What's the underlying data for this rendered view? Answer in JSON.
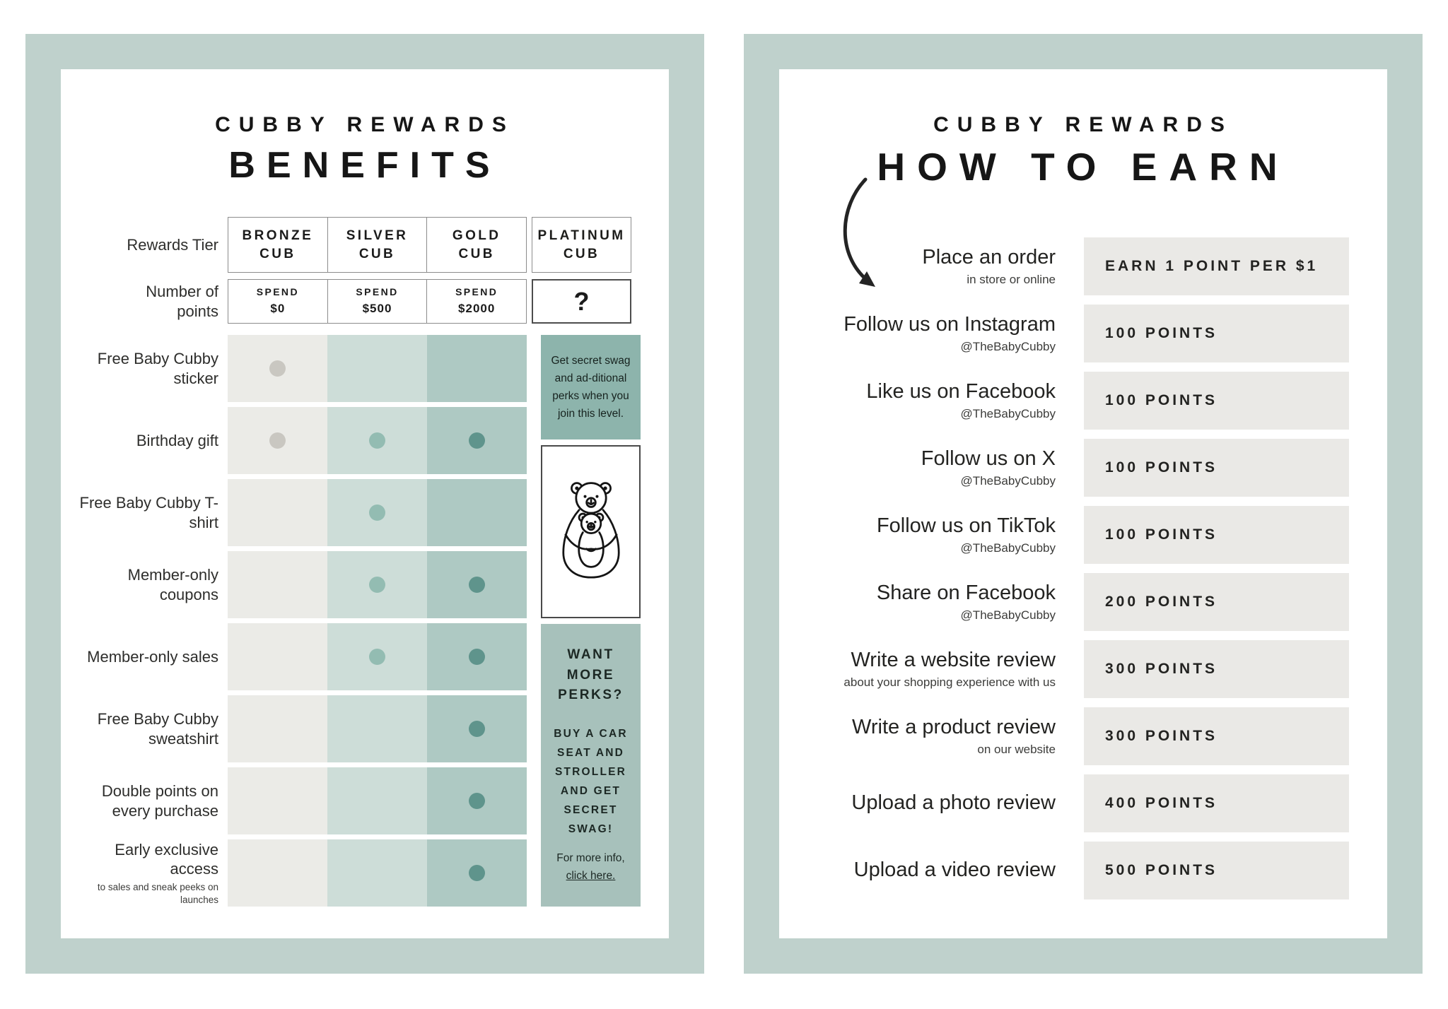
{
  "colors": {
    "frame": "#bfd1cc",
    "bronze_cell": "#ebebe7",
    "silver_cell": "#cdddd8",
    "gold_cell": "#aec9c3",
    "bronze_dot": "#c9c7c1",
    "silver_dot": "#93bcb2",
    "gold_dot": "#5f948c",
    "platinum_promo_bg": "#8db4ac",
    "perks_box_bg": "#a7c1bb",
    "points_box_bg": "#eae9e6"
  },
  "benefits_panel": {
    "title_line1": "CUBBY REWARDS",
    "title_line2": "BENEFITS",
    "tier_row_label": "Rewards Tier",
    "points_row_label": "Number of points",
    "tiers": [
      {
        "name": "BRONZE CUB",
        "spend_label": "SPEND",
        "spend_amount": "$0"
      },
      {
        "name": "SILVER CUB",
        "spend_label": "SPEND",
        "spend_amount": "$500"
      },
      {
        "name": "GOLD CUB",
        "spend_label": "SPEND",
        "spend_amount": "$2000"
      },
      {
        "name": "PLATINUM CUB",
        "points_symbol": "?"
      }
    ],
    "rows": [
      {
        "label": "Free Baby Cubby sticker",
        "sub": "",
        "dots": [
          "bronze"
        ]
      },
      {
        "label": "Birthday gift",
        "sub": "",
        "dots": [
          "bronze",
          "silver",
          "gold"
        ]
      },
      {
        "label": "Free Baby Cubby T-shirt",
        "sub": "",
        "dots": [
          "silver"
        ]
      },
      {
        "label": "Member-only coupons",
        "sub": "",
        "dots": [
          "silver",
          "gold"
        ]
      },
      {
        "label": "Member-only sales",
        "sub": "",
        "dots": [
          "silver",
          "gold"
        ]
      },
      {
        "label": "Free Baby Cubby sweatshirt",
        "sub": "",
        "dots": [
          "gold"
        ]
      },
      {
        "label": "Double points on every purchase",
        "sub": "",
        "dots": [
          "gold"
        ]
      },
      {
        "label": "Early exclusive access",
        "sub": "to sales and sneak peeks on launches",
        "dots": [
          "gold"
        ]
      }
    ],
    "platinum_promo": {
      "text": "Get secret swag and ad-ditional perks when you join this level."
    },
    "bear_icon": "mama-bear-holding-cub-icon",
    "perks": {
      "title": "WANT MORE PERKS?",
      "body": "BUY A CAR SEAT AND STROLLER AND GET SECRET SWAG!",
      "info_line": "For more info,",
      "link_label": "click here."
    }
  },
  "earn_panel": {
    "title_line1": "CUBBY REWARDS",
    "title_line2": "HOW TO EARN",
    "rows": [
      {
        "label": "Place an order",
        "sub": "in store or online",
        "points": "EARN 1 POINT PER $1"
      },
      {
        "label": "Follow us on Instagram",
        "sub": "@TheBabyCubby",
        "points": "100 POINTS"
      },
      {
        "label": "Like us on Facebook",
        "sub": "@TheBabyCubby",
        "points": "100 POINTS"
      },
      {
        "label": "Follow us on X",
        "sub": "@TheBabyCubby",
        "points": "100 POINTS"
      },
      {
        "label": "Follow us on TikTok",
        "sub": "@TheBabyCubby",
        "points": "100 POINTS"
      },
      {
        "label": "Share on Facebook",
        "sub": "@TheBabyCubby",
        "points": "200 POINTS"
      },
      {
        "label": "Write a website review",
        "sub": "about your shopping experience with us",
        "points": "300 POINTS"
      },
      {
        "label": "Write a product review",
        "sub": "on our website",
        "points": "300 POINTS"
      },
      {
        "label": "Upload a photo review",
        "sub": "",
        "points": "400 POINTS"
      },
      {
        "label": "Upload a video review",
        "sub": "",
        "points": "500 POINTS"
      }
    ]
  }
}
